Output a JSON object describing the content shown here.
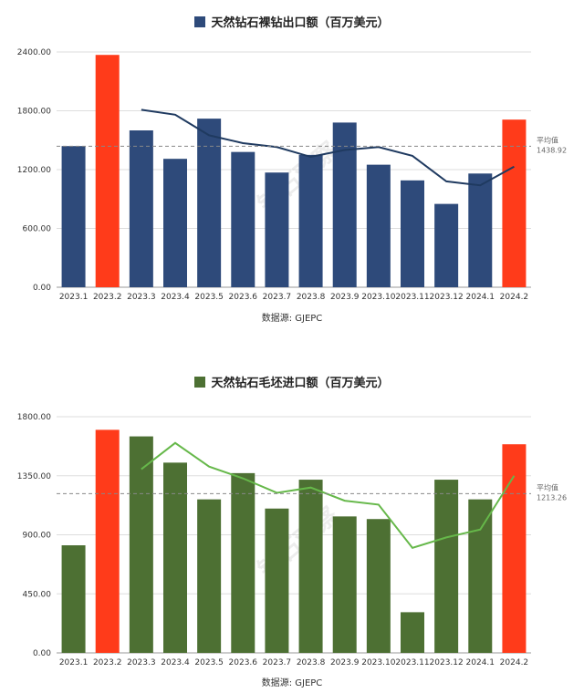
{
  "chart_data": [
    {
      "type": "bar",
      "title": "天然钻石裸钻出口额（百万美元）",
      "source": "数据源: GJEPC",
      "legend_color": "#2e4a7a",
      "bar_color": "#2e4a7a",
      "highlight_color": "#ff3b1a",
      "line_color": "#1f3a60",
      "categories": [
        "2023.1",
        "2023.2",
        "2023.3",
        "2023.4",
        "2023.5",
        "2023.6",
        "2023.7",
        "2023.8",
        "2023.9",
        "2023.10",
        "2023.11",
        "2023.12",
        "2024.1",
        "2024.2"
      ],
      "values": [
        1440,
        2370,
        1600,
        1310,
        1720,
        1380,
        1170,
        1350,
        1680,
        1250,
        1090,
        850,
        1160,
        1710
      ],
      "highlight": [
        1,
        13
      ],
      "trend": [
        null,
        null,
        1810,
        1760,
        1550,
        1470,
        1430,
        1330,
        1400,
        1430,
        1340,
        1080,
        1040,
        1230
      ],
      "average": 1438.92,
      "average_label": "平均值",
      "average_text": "1438.92",
      "y_ticks": [
        "0.00",
        "600.00",
        "1200.00",
        "1800.00",
        "2400.00"
      ],
      "ylim": [
        0,
        2400
      ],
      "y_tick_values": [
        0,
        600,
        1200,
        1800,
        2400
      ],
      "watermark": "钻石观察"
    },
    {
      "type": "bar",
      "title": "天然钻石毛坯进口额（百万美元）",
      "source": "数据源: GJEPC",
      "legend_color": "#4d7033",
      "bar_color": "#4d7033",
      "highlight_color": "#ff3b1a",
      "line_color": "#66b84a",
      "categories": [
        "2023.1",
        "2023.2",
        "2023.3",
        "2023.4",
        "2023.5",
        "2023.6",
        "2023.7",
        "2023.8",
        "2023.9",
        "2023.10",
        "2023.11",
        "2023.12",
        "2024.1",
        "2024.2"
      ],
      "values": [
        820,
        1700,
        1650,
        1450,
        1170,
        1370,
        1100,
        1320,
        1040,
        1020,
        310,
        1320,
        1170,
        1590
      ],
      "highlight": [
        1,
        13
      ],
      "trend": [
        null,
        null,
        1400,
        1600,
        1420,
        1330,
        1220,
        1260,
        1160,
        1130,
        800,
        880,
        940,
        1350
      ],
      "average": 1213.26,
      "average_label": "平均值",
      "average_text": "1213.26",
      "y_ticks": [
        "0.00",
        "450.00",
        "900.00",
        "1350.00",
        "1800.00"
      ],
      "ylim": [
        0,
        1800
      ],
      "y_tick_values": [
        0,
        450,
        900,
        1350,
        1800
      ],
      "watermark": "钻石观察"
    }
  ]
}
